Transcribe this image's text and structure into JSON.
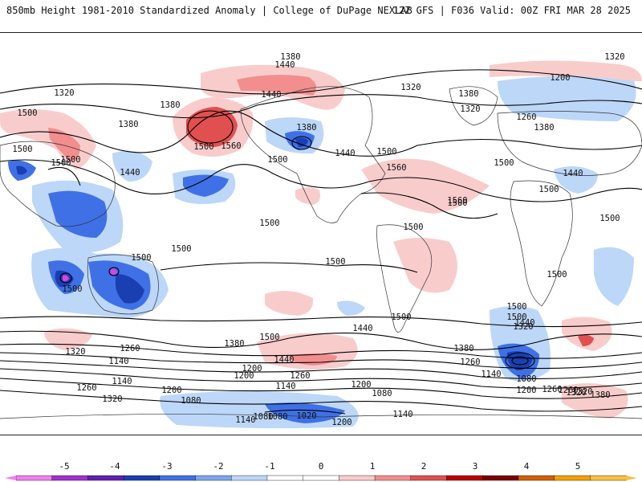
{
  "header": {
    "left": "850mb Height 1981-2010 Standardized Anomaly | College of DuPage NEXLAB",
    "right": "12Z GFS | F036 Valid: 00Z FRI MAR 28 2025"
  },
  "colors": {
    "neg5": "#e040e0",
    "neg4": "#8a20c8",
    "neg3": "#1a3fb0",
    "neg2": "#3f70e6",
    "neg1": "#bcd7f8",
    "pos1": "#f9cccc",
    "pos2": "#f28e8e",
    "pos3": "#e05050",
    "pos4": "#b80000",
    "pos5": "#f5a000",
    "contour": "#000000",
    "coast": "#333333"
  },
  "colorbar": {
    "ticks": [
      "-5",
      "-4",
      "-3",
      "-2",
      "-1",
      "0",
      "1",
      "2",
      "3",
      "4",
      "5"
    ]
  },
  "contour_labels": [
    {
      "text": "1380"
    },
    {
      "text": "1320"
    },
    {
      "text": "1440"
    },
    {
      "text": "1380"
    },
    {
      "text": "1320"
    },
    {
      "text": "1200"
    },
    {
      "text": "1320"
    },
    {
      "text": "1380"
    },
    {
      "text": "1440"
    },
    {
      "text": "1500"
    },
    {
      "text": "1380"
    },
    {
      "text": "1380"
    },
    {
      "text": "1320"
    },
    {
      "text": "1260"
    },
    {
      "text": "1380"
    },
    {
      "text": "1440"
    },
    {
      "text": "1500"
    },
    {
      "text": "1560"
    },
    {
      "text": "1500"
    },
    {
      "text": "1500"
    },
    {
      "text": "1440"
    },
    {
      "text": "1500"
    },
    {
      "text": "1560"
    },
    {
      "text": "1500"
    },
    {
      "text": "1500"
    },
    {
      "text": "1560"
    },
    {
      "text": "1440"
    },
    {
      "text": "1500"
    },
    {
      "text": "1500"
    },
    {
      "text": "1500"
    },
    {
      "text": "1500"
    },
    {
      "text": "1500"
    },
    {
      "text": "1500"
    },
    {
      "text": "1500"
    },
    {
      "text": "1500"
    },
    {
      "text": "1500"
    },
    {
      "text": "1500"
    },
    {
      "text": "1500"
    },
    {
      "text": "1500"
    },
    {
      "text": "1500"
    },
    {
      "text": "1500"
    },
    {
      "text": "1440"
    },
    {
      "text": "1500"
    },
    {
      "text": "1440"
    },
    {
      "text": "1440"
    },
    {
      "text": "1380"
    },
    {
      "text": "1380"
    },
    {
      "text": "1320"
    },
    {
      "text": "1260"
    },
    {
      "text": "1200"
    },
    {
      "text": "1320"
    },
    {
      "text": "1260"
    },
    {
      "text": "1200"
    },
    {
      "text": "1140"
    },
    {
      "text": "1260"
    },
    {
      "text": "1320"
    },
    {
      "text": "1200"
    },
    {
      "text": "1260"
    },
    {
      "text": "1140"
    },
    {
      "text": "1080"
    },
    {
      "text": "1260"
    },
    {
      "text": "1140"
    },
    {
      "text": "1200"
    },
    {
      "text": "1320"
    },
    {
      "text": "1080"
    },
    {
      "text": "1140"
    },
    {
      "text": "1080"
    },
    {
      "text": "1080"
    },
    {
      "text": "1020"
    },
    {
      "text": "1140"
    },
    {
      "text": "1200"
    },
    {
      "text": "1200"
    },
    {
      "text": "1260"
    },
    {
      "text": "1320"
    },
    {
      "text": "1380"
    },
    {
      "text": "1080"
    },
    {
      "text": "1140"
    }
  ]
}
